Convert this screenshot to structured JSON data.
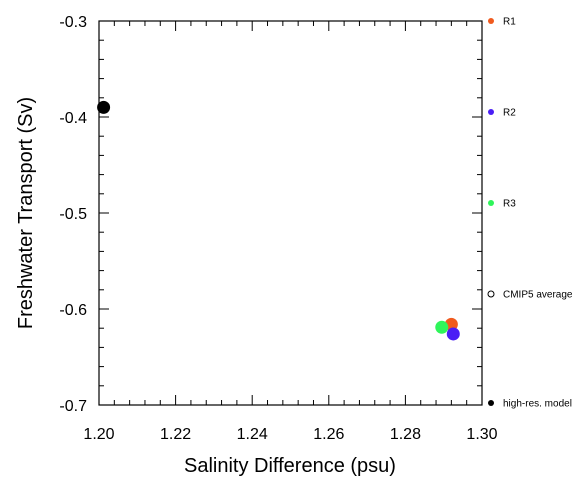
{
  "chart_data": {
    "type": "scatter",
    "title": "",
    "xlabel": "Salinity Difference (psu)",
    "ylabel": "Freshwater Transport (Sv)",
    "xlim": [
      1.2,
      1.3
    ],
    "ylim": [
      -0.7,
      -0.3
    ],
    "x_ticks": [
      1.2,
      1.22,
      1.24,
      1.26,
      1.28,
      1.3
    ],
    "x_tick_labels": [
      "1.20",
      "1.22",
      "1.24",
      "1.26",
      "1.28",
      "1.30"
    ],
    "y_ticks": [
      -0.3,
      -0.4,
      -0.5,
      -0.6,
      -0.7
    ],
    "y_tick_labels": [
      "-0.3",
      "-0.4",
      "-0.5",
      "-0.6",
      "-0.7"
    ],
    "grid": false,
    "legend_placement": "right",
    "series": [
      {
        "name": "R1",
        "color": "#f05a1e",
        "marker": "filled-circle",
        "points": [
          {
            "x": 1.292,
            "y": -0.616
          }
        ]
      },
      {
        "name": "R2",
        "color": "#4a1ef5",
        "marker": "filled-circle",
        "points": [
          {
            "x": 1.2925,
            "y": -0.626
          }
        ]
      },
      {
        "name": "R3",
        "color": "#2ff55a",
        "marker": "filled-circle",
        "points": [
          {
            "x": 1.2895,
            "y": -0.619
          }
        ]
      },
      {
        "name": "CMIP5 average",
        "color": "#000000",
        "marker": "open-circle",
        "points": []
      },
      {
        "name": "high-res. model",
        "color": "#000000",
        "marker": "filled-circle",
        "points": [
          {
            "x": 1.2012,
            "y": -0.39
          }
        ]
      }
    ]
  }
}
